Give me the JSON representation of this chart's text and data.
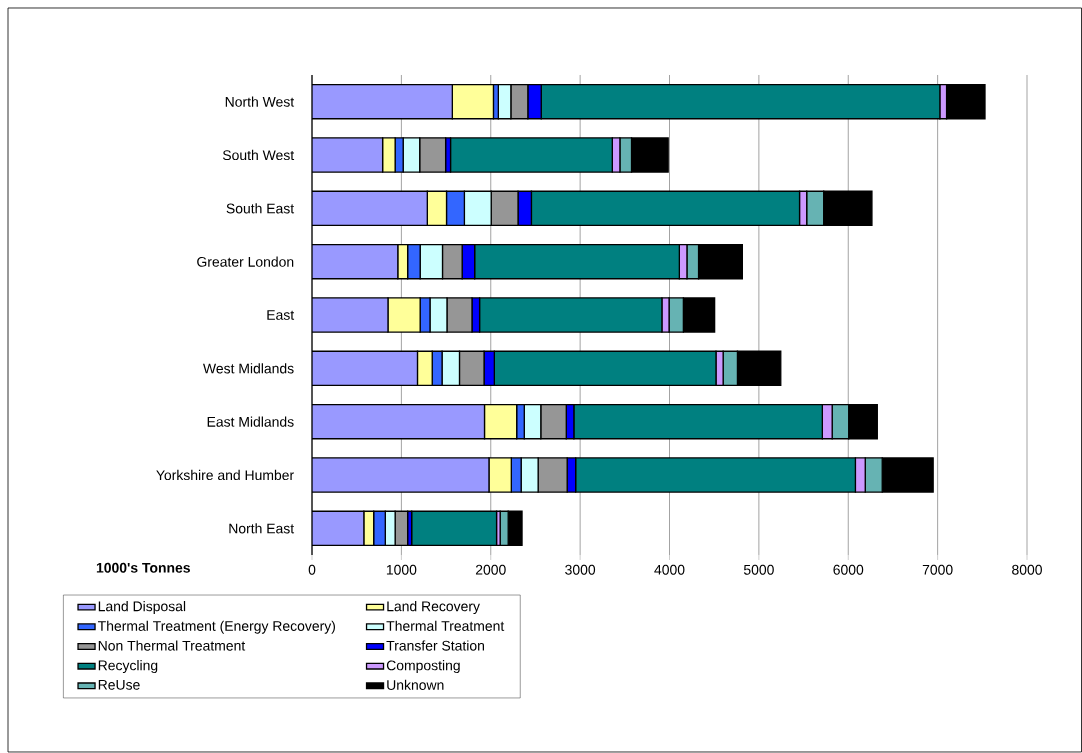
{
  "chart_data": {
    "type": "bar",
    "orientation": "horizontal",
    "stacked": true,
    "xlabel": "1000's Tonnes",
    "categories": [
      "North West",
      "South West",
      "South East",
      "Greater London",
      "East",
      "West Midlands",
      "East Midlands",
      "Yorkshire and Humber",
      "North East"
    ],
    "xlim": [
      0,
      8000
    ],
    "xticks": [
      0,
      1000,
      2000,
      3000,
      4000,
      5000,
      6000,
      7000,
      8000
    ],
    "grid": "x",
    "legend": "bottom",
    "series": [
      {
        "name": "Land Disposal",
        "color": "#9999ff",
        "values": [
          1570,
          790,
          1290,
          960,
          850,
          1180,
          1930,
          1980,
          580
        ]
      },
      {
        "name": "Land Recovery",
        "color": "#ffff99",
        "values": [
          460,
          140,
          215,
          110,
          360,
          165,
          360,
          250,
          110
        ]
      },
      {
        "name": "Thermal Treatment (Energy Recovery)",
        "color": "#3366ff",
        "values": [
          55,
          90,
          200,
          140,
          110,
          110,
          85,
          110,
          130
        ]
      },
      {
        "name": "Thermal Treatment",
        "color": "#ccffff",
        "values": [
          140,
          185,
          300,
          250,
          190,
          195,
          185,
          190,
          110
        ]
      },
      {
        "name": "Non Thermal Treatment",
        "color": "#969696",
        "values": [
          190,
          290,
          300,
          220,
          280,
          275,
          285,
          325,
          140
        ]
      },
      {
        "name": "Transfer Station",
        "color": "#0000ff",
        "values": [
          150,
          55,
          150,
          140,
          85,
          115,
          85,
          95,
          45
        ]
      },
      {
        "name": "Recycling",
        "color": "#008080",
        "values": [
          4460,
          1810,
          3000,
          2290,
          2040,
          2480,
          2780,
          3130,
          950
        ]
      },
      {
        "name": "Composting",
        "color": "#cc99ff",
        "values": [
          75,
          85,
          80,
          85,
          80,
          80,
          110,
          110,
          40
        ]
      },
      {
        "name": "ReUse",
        "color": "#66b3b3",
        "values": [
          0,
          130,
          190,
          130,
          160,
          160,
          185,
          190,
          90
        ]
      },
      {
        "name": "Unknown",
        "color": "#000000",
        "values": [
          430,
          410,
          540,
          490,
          350,
          485,
          320,
          570,
          155
        ]
      }
    ]
  }
}
